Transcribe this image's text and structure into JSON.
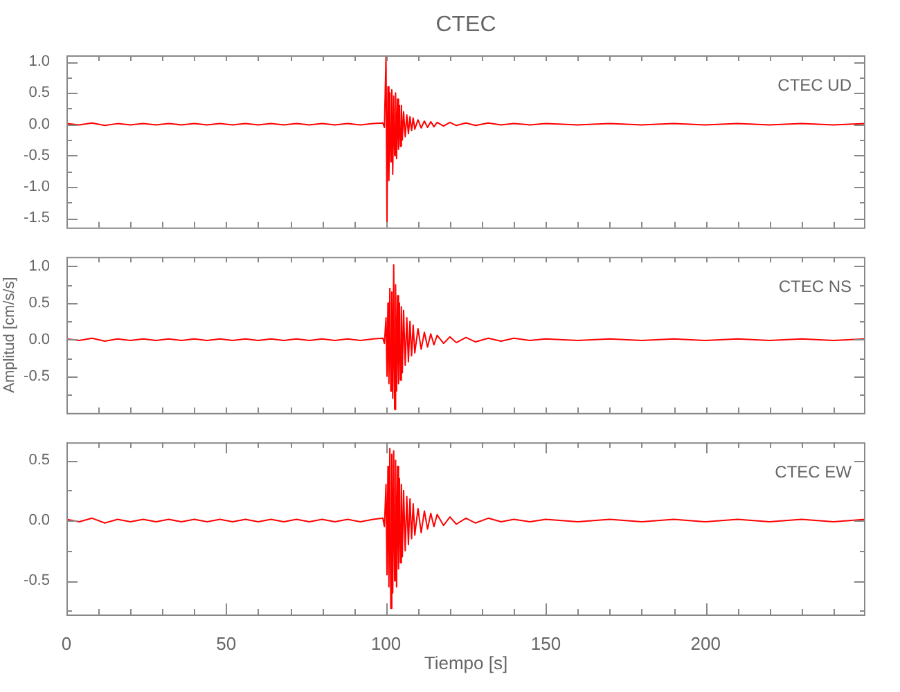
{
  "chart_data": [
    {
      "type": "line",
      "title": "CTEC",
      "annotations": [
        "CTEC UD"
      ],
      "tick_labels": "y",
      "x": [
        0,
        4,
        8,
        12,
        16,
        20,
        24,
        28,
        32,
        36,
        40,
        44,
        48,
        52,
        56,
        60,
        64,
        68,
        72,
        76,
        80,
        84,
        88,
        92,
        96,
        99,
        99.5,
        100,
        100.3,
        100.6,
        100.9,
        101.2,
        101.5,
        101.8,
        102.1,
        102.4,
        102.7,
        103,
        103.3,
        103.6,
        103.9,
        104.2,
        104.5,
        104.8,
        105.1,
        105.5,
        106,
        106.5,
        107,
        107.5,
        108,
        108.5,
        109,
        110,
        111,
        112,
        113,
        114,
        115,
        116,
        118,
        120,
        122,
        125,
        128,
        132,
        136,
        140,
        145,
        150,
        160,
        170,
        180,
        190,
        200,
        210,
        220,
        230,
        240,
        250
      ],
      "series": [
        {
          "color": "#ff0000",
          "values": [
            0.01,
            -0.01,
            0.02,
            -0.02,
            0.01,
            -0.01,
            0.01,
            -0.01,
            0.01,
            -0.01,
            0.01,
            -0.01,
            0.01,
            -0.01,
            0.01,
            -0.01,
            0.01,
            -0.01,
            0.01,
            -0.01,
            0.01,
            -0.01,
            0.01,
            -0.01,
            0.01,
            0.02,
            -0.05,
            1.08,
            -1.58,
            0.6,
            -0.9,
            0.5,
            -0.6,
            0.55,
            -0.8,
            0.45,
            -0.5,
            0.5,
            -0.55,
            0.4,
            -0.4,
            0.3,
            -0.35,
            0.3,
            -0.25,
            0.2,
            -0.2,
            0.15,
            -0.15,
            0.12,
            -0.1,
            0.1,
            -0.08,
            0.07,
            -0.06,
            0.05,
            -0.05,
            0.04,
            -0.04,
            0.03,
            -0.03,
            0.03,
            -0.02,
            0.02,
            -0.02,
            0.02,
            -0.01,
            0.01,
            -0.01,
            0.01,
            -0.01,
            0.01,
            -0.01,
            0.01,
            -0.01,
            0.01,
            -0.01,
            0.01,
            -0.01,
            0.01
          ]
        }
      ],
      "xlim": [
        0,
        250
      ],
      "xticks": [
        {
          "value": 0,
          "label": null
        },
        {
          "value": 10,
          "label": null
        },
        {
          "value": 20,
          "label": null
        },
        {
          "value": 30,
          "label": null
        },
        {
          "value": 40,
          "label": null
        },
        {
          "value": 50,
          "label": null
        },
        {
          "value": 60,
          "label": null
        },
        {
          "value": 70,
          "label": null
        },
        {
          "value": 80,
          "label": null
        },
        {
          "value": 90,
          "label": null
        },
        {
          "value": 100,
          "label": null
        },
        {
          "value": 110,
          "label": null
        },
        {
          "value": 120,
          "label": null
        },
        {
          "value": 130,
          "label": null
        },
        {
          "value": 140,
          "label": null
        },
        {
          "value": 150,
          "label": null
        },
        {
          "value": 160,
          "label": null
        },
        {
          "value": 170,
          "label": null
        },
        {
          "value": 180,
          "label": null
        },
        {
          "value": 190,
          "label": null
        },
        {
          "value": 200,
          "label": null
        },
        {
          "value": 210,
          "label": null
        },
        {
          "value": 220,
          "label": null
        },
        {
          "value": 230,
          "label": null
        },
        {
          "value": 240,
          "label": null
        }
      ],
      "ylim": [
        -1.65,
        1.1
      ],
      "yticks": [
        {
          "value": -1.5,
          "label": "-1.5"
        },
        {
          "value": -1.25,
          "label": null
        },
        {
          "value": -1,
          "label": "-1.0"
        },
        {
          "value": -0.75,
          "label": null
        },
        {
          "value": -0.5,
          "label": "-0.5"
        },
        {
          "value": -0.25,
          "label": null
        },
        {
          "value": 0,
          "label": "0.0"
        },
        {
          "value": 0.25,
          "label": null
        },
        {
          "value": 0.5,
          "label": "0.5"
        },
        {
          "value": 0.75,
          "label": null
        },
        {
          "value": 1,
          "label": "1.0"
        }
      ]
    },
    {
      "type": "line",
      "ylabel": "Amplitud [cm/s/s]",
      "annotations": [
        "CTEC NS"
      ],
      "tick_labels": "y",
      "x": [
        0,
        4,
        8,
        12,
        16,
        20,
        24,
        28,
        32,
        36,
        40,
        44,
        48,
        52,
        56,
        60,
        64,
        68,
        72,
        76,
        80,
        84,
        88,
        92,
        96,
        99,
        99.5,
        100,
        100.3,
        100.6,
        100.9,
        101.2,
        101.5,
        101.8,
        102.1,
        102.4,
        102.7,
        103,
        103.3,
        103.6,
        103.9,
        104.2,
        104.5,
        104.8,
        105.1,
        105.5,
        106,
        106.5,
        107,
        107.5,
        108,
        108.5,
        109,
        110,
        111,
        112,
        113,
        114,
        115,
        116,
        118,
        120,
        122,
        125,
        128,
        132,
        136,
        140,
        145,
        150,
        160,
        170,
        180,
        190,
        200,
        210,
        220,
        230,
        240,
        250
      ],
      "series": [
        {
          "color": "#ff0000",
          "values": [
            0.01,
            -0.01,
            0.02,
            -0.02,
            0.01,
            -0.01,
            0.01,
            -0.01,
            0.01,
            -0.01,
            0.01,
            -0.01,
            0.01,
            -0.01,
            0.01,
            -0.01,
            0.01,
            -0.01,
            0.01,
            -0.01,
            0.01,
            -0.01,
            0.01,
            -0.01,
            0.01,
            0.02,
            -0.05,
            0.3,
            -0.5,
            0.5,
            -0.6,
            0.7,
            -0.7,
            0.65,
            -0.8,
            1.02,
            -0.95,
            0.75,
            -0.7,
            0.6,
            -0.6,
            0.5,
            -0.55,
            0.45,
            -0.45,
            0.4,
            -0.35,
            0.3,
            -0.3,
            0.25,
            -0.22,
            0.2,
            -0.18,
            0.15,
            -0.13,
            0.1,
            -0.1,
            0.08,
            -0.07,
            0.06,
            -0.05,
            0.04,
            -0.04,
            0.03,
            -0.03,
            0.02,
            -0.02,
            0.02,
            -0.01,
            0.01,
            -0.01,
            0.01,
            -0.01,
            0.01,
            -0.01,
            0.01,
            -0.01,
            0.01,
            -0.01,
            0.01
          ]
        }
      ],
      "xlim": [
        0,
        250
      ],
      "xticks": [
        {
          "value": 0,
          "label": null
        },
        {
          "value": 10,
          "label": null
        },
        {
          "value": 20,
          "label": null
        },
        {
          "value": 30,
          "label": null
        },
        {
          "value": 40,
          "label": null
        },
        {
          "value": 50,
          "label": null
        },
        {
          "value": 60,
          "label": null
        },
        {
          "value": 70,
          "label": null
        },
        {
          "value": 80,
          "label": null
        },
        {
          "value": 90,
          "label": null
        },
        {
          "value": 100,
          "label": null
        },
        {
          "value": 110,
          "label": null
        },
        {
          "value": 120,
          "label": null
        },
        {
          "value": 130,
          "label": null
        },
        {
          "value": 140,
          "label": null
        },
        {
          "value": 150,
          "label": null
        },
        {
          "value": 160,
          "label": null
        },
        {
          "value": 170,
          "label": null
        },
        {
          "value": 180,
          "label": null
        },
        {
          "value": 190,
          "label": null
        },
        {
          "value": 200,
          "label": null
        },
        {
          "value": 210,
          "label": null
        },
        {
          "value": 220,
          "label": null
        },
        {
          "value": 230,
          "label": null
        },
        {
          "value": 240,
          "label": null
        }
      ],
      "ylim": [
        -1.0,
        1.13
      ],
      "yticks": [
        {
          "value": -0.75,
          "label": null
        },
        {
          "value": -0.5,
          "label": "-0.5"
        },
        {
          "value": -0.25,
          "label": null
        },
        {
          "value": 0,
          "label": "0.0"
        },
        {
          "value": 0.25,
          "label": null
        },
        {
          "value": 0.5,
          "label": "0.5"
        },
        {
          "value": 0.75,
          "label": null
        },
        {
          "value": 1,
          "label": "1.0"
        }
      ]
    },
    {
      "type": "line",
      "xlabel": "Tiempo [s]",
      "annotations": [
        "CTEC EW"
      ],
      "x": [
        0,
        4,
        8,
        12,
        16,
        20,
        24,
        28,
        32,
        36,
        40,
        44,
        48,
        52,
        56,
        60,
        64,
        68,
        72,
        76,
        80,
        84,
        88,
        92,
        96,
        99,
        99.5,
        100,
        100.3,
        100.6,
        100.9,
        101.2,
        101.5,
        101.8,
        102.1,
        102.4,
        102.7,
        103,
        103.3,
        103.6,
        103.9,
        104.2,
        104.5,
        104.8,
        105.1,
        105.5,
        106,
        106.5,
        107,
        107.5,
        108,
        108.5,
        109,
        110,
        111,
        112,
        113,
        114,
        115,
        116,
        118,
        120,
        122,
        125,
        128,
        132,
        136,
        140,
        145,
        150,
        160,
        170,
        180,
        190,
        200,
        210,
        220,
        230,
        240,
        250
      ],
      "series": [
        {
          "color": "#ff0000",
          "values": [
            0.01,
            -0.01,
            0.02,
            -0.02,
            0.01,
            -0.01,
            0.01,
            -0.01,
            0.01,
            -0.01,
            0.01,
            -0.01,
            0.01,
            -0.01,
            0.01,
            -0.01,
            0.01,
            -0.01,
            0.01,
            -0.01,
            0.01,
            -0.01,
            0.01,
            -0.01,
            0.01,
            0.02,
            -0.05,
            0.3,
            -0.45,
            0.45,
            -0.55,
            0.6,
            -0.73,
            0.55,
            -0.6,
            0.58,
            -0.5,
            0.5,
            -0.55,
            0.45,
            -0.4,
            0.35,
            -0.35,
            0.3,
            -0.3,
            0.25,
            -0.25,
            0.2,
            -0.2,
            0.18,
            -0.15,
            0.14,
            -0.12,
            0.1,
            -0.1,
            0.08,
            -0.07,
            0.06,
            -0.05,
            0.05,
            -0.04,
            0.03,
            -0.03,
            0.02,
            -0.02,
            0.02,
            -0.01,
            0.01,
            -0.01,
            0.01,
            -0.01,
            0.01,
            -0.01,
            0.01,
            -0.01,
            0.01,
            -0.01,
            0.01,
            -0.01,
            0.01
          ]
        }
      ],
      "xlim": [
        0,
        250
      ],
      "xticks": [
        {
          "value": 0,
          "label": "0"
        },
        {
          "value": 10,
          "label": null
        },
        {
          "value": 20,
          "label": null
        },
        {
          "value": 30,
          "label": null
        },
        {
          "value": 40,
          "label": null
        },
        {
          "value": 50,
          "label": "50"
        },
        {
          "value": 60,
          "label": null
        },
        {
          "value": 70,
          "label": null
        },
        {
          "value": 80,
          "label": null
        },
        {
          "value": 90,
          "label": null
        },
        {
          "value": 100,
          "label": "100"
        },
        {
          "value": 110,
          "label": null
        },
        {
          "value": 120,
          "label": null
        },
        {
          "value": 130,
          "label": null
        },
        {
          "value": 140,
          "label": null
        },
        {
          "value": 150,
          "label": "150"
        },
        {
          "value": 160,
          "label": null
        },
        {
          "value": 170,
          "label": null
        },
        {
          "value": 180,
          "label": null
        },
        {
          "value": 190,
          "label": null
        },
        {
          "value": 200,
          "label": "200"
        },
        {
          "value": 210,
          "label": null
        },
        {
          "value": 220,
          "label": null
        },
        {
          "value": 230,
          "label": null
        },
        {
          "value": 240,
          "label": null
        }
      ],
      "ylim": [
        -0.78,
        0.65
      ],
      "yticks": [
        {
          "value": -0.75,
          "label": null
        },
        {
          "value": -0.5,
          "label": "-0.5"
        },
        {
          "value": -0.25,
          "label": null
        },
        {
          "value": 0,
          "label": "0.0"
        },
        {
          "value": 0.25,
          "label": null
        },
        {
          "value": 0.5,
          "label": "0.5"
        }
      ]
    }
  ]
}
